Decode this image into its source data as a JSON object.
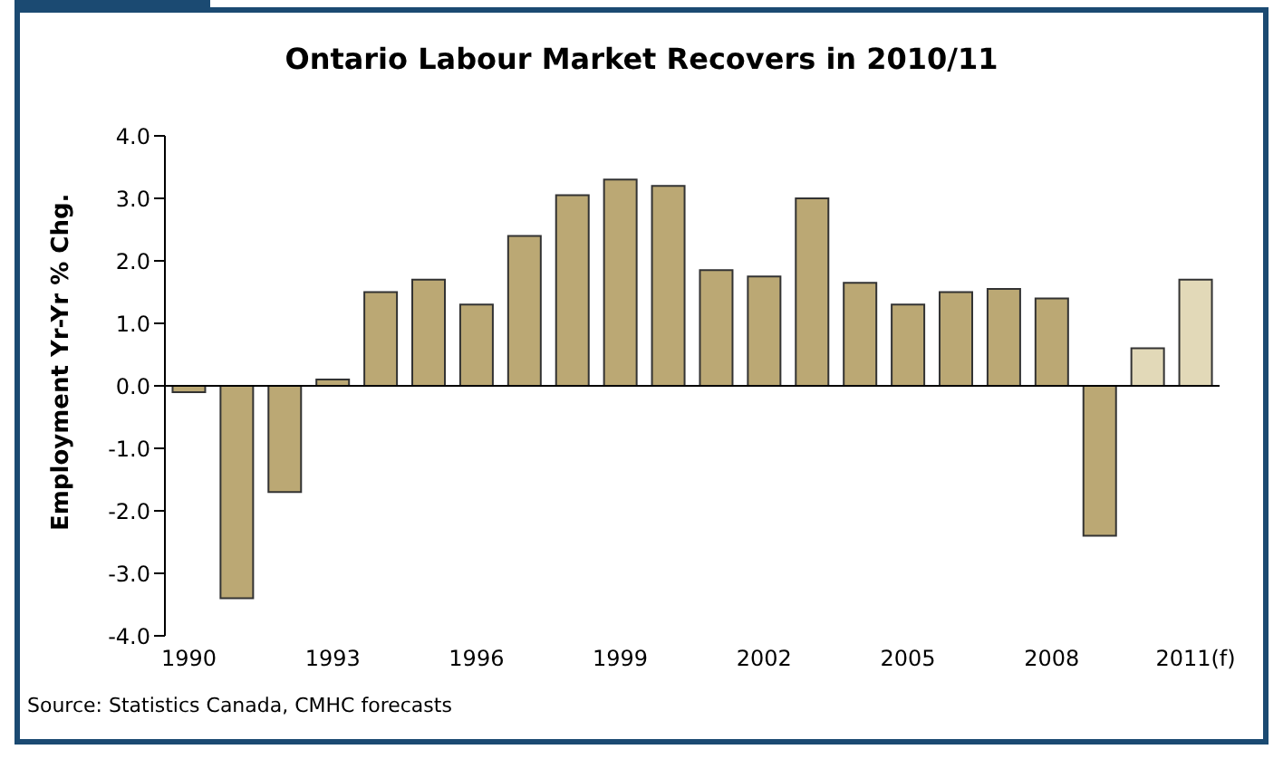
{
  "chart_data": {
    "type": "bar",
    "title": "Ontario Labour Market Recovers in 2010/11",
    "ylabel": "Employment Yr-Yr % Chg.",
    "categories": [
      "1990",
      null,
      null,
      "1993",
      null,
      null,
      "1996",
      null,
      null,
      "1999",
      null,
      null,
      "2002",
      null,
      null,
      "2005",
      null,
      null,
      "2008",
      null,
      null,
      "2011(f)"
    ],
    "values": [
      -0.1,
      -3.4,
      -1.7,
      0.1,
      1.5,
      1.7,
      1.3,
      2.4,
      3.05,
      3.3,
      3.2,
      1.85,
      1.75,
      3.0,
      1.65,
      1.3,
      1.5,
      1.55,
      1.4,
      -2.4,
      0.6,
      1.7
    ],
    "colors": [
      "#bba874",
      "#bba874",
      "#bba874",
      "#bba874",
      "#bba874",
      "#bba874",
      "#bba874",
      "#bba874",
      "#bba874",
      "#bba874",
      "#bba874",
      "#bba874",
      "#bba874",
      "#bba874",
      "#bba874",
      "#bba874",
      "#bba874",
      "#bba874",
      "#bba874",
      "#bba874",
      "#e2d9b8",
      "#e2d9b8"
    ],
    "ylim": [
      -4,
      4
    ],
    "yticks": [
      {
        "value": -4,
        "label": "-4.0"
      },
      {
        "value": -3,
        "label": "-3.0"
      },
      {
        "value": -2,
        "label": "-2.0"
      },
      {
        "value": -1,
        "label": "-1.0"
      },
      {
        "value": 0,
        "label": "0.0"
      },
      {
        "value": 1,
        "label": "1.0"
      },
      {
        "value": 2,
        "label": "2.0"
      },
      {
        "value": 3,
        "label": "3.0"
      },
      {
        "value": 4,
        "label": "4.0"
      }
    ],
    "legend": false,
    "annotations": [
      "Source: Statistics Canada, CMHC forecasts"
    ]
  }
}
